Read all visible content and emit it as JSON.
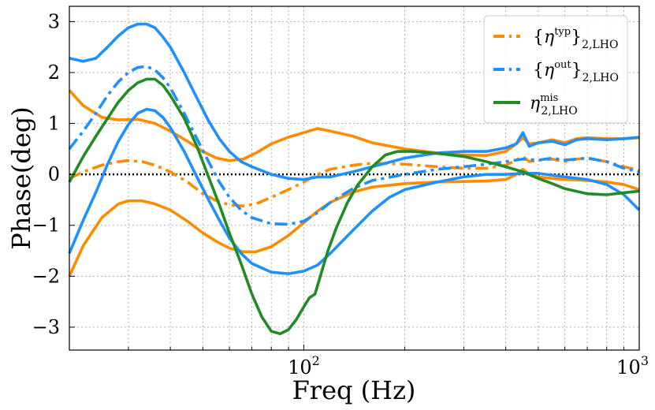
{
  "chart_data": {
    "type": "line",
    "title": "",
    "xlabel": "Freq (Hz)",
    "ylabel": "Phase(deg)",
    "xscale": "log",
    "xlim": [
      20,
      1000
    ],
    "ylim": [
      -3.45,
      3.3
    ],
    "grid": true,
    "legend_position": "top-right",
    "x_tick_labels": [
      {
        "value": 100,
        "base": "10",
        "exp": "2"
      },
      {
        "value": 1000,
        "base": "10",
        "exp": "3"
      }
    ],
    "y_ticks": [
      3,
      2,
      1,
      0,
      -1,
      -2,
      -3
    ],
    "y_tick_labels": [
      "3",
      "2",
      "1",
      "0",
      "−1",
      "−2",
      "−3"
    ],
    "legend": [
      {
        "symbol": "η",
        "sup": "typ",
        "sub": "2,LHO",
        "braces": true,
        "color": "#ff8c00",
        "style": "dashdot"
      },
      {
        "symbol": "η",
        "sup": "out",
        "sub": "2,LHO",
        "braces": true,
        "color": "#1e90ff",
        "style": "dashdot"
      },
      {
        "symbol": "η",
        "sup": "mis",
        "sub": "2,LHO",
        "braces": false,
        "color": "#228b22",
        "style": "solid"
      }
    ],
    "reference_line": {
      "y": 0,
      "color": "#000000",
      "style": "dotted"
    },
    "series": [
      {
        "id": "typ-upper",
        "color": "#ff8c00",
        "style": "solid",
        "points": [
          [
            20,
            1.65
          ],
          [
            22,
            1.35
          ],
          [
            25,
            1.12
          ],
          [
            28,
            1.07
          ],
          [
            32,
            1.08
          ],
          [
            36,
            1.0
          ],
          [
            40,
            0.85
          ],
          [
            45,
            0.65
          ],
          [
            50,
            0.45
          ],
          [
            55,
            0.32
          ],
          [
            60,
            0.27
          ],
          [
            66,
            0.3
          ],
          [
            72,
            0.42
          ],
          [
            80,
            0.6
          ],
          [
            90,
            0.73
          ],
          [
            100,
            0.82
          ],
          [
            110,
            0.9
          ],
          [
            120,
            0.85
          ],
          [
            140,
            0.75
          ],
          [
            160,
            0.62
          ],
          [
            200,
            0.5
          ],
          [
            250,
            0.42
          ],
          [
            300,
            0.38
          ],
          [
            350,
            0.37
          ],
          [
            400,
            0.45
          ],
          [
            430,
            0.6
          ],
          [
            450,
            0.72
          ],
          [
            470,
            0.6
          ],
          [
            500,
            0.62
          ],
          [
            550,
            0.68
          ],
          [
            600,
            0.62
          ],
          [
            650,
            0.7
          ],
          [
            700,
            0.72
          ],
          [
            800,
            0.7
          ],
          [
            900,
            0.7
          ],
          [
            1000,
            0.72
          ]
        ]
      },
      {
        "id": "typ-center",
        "color": "#ff8c00",
        "style": "dashdot",
        "points": [
          [
            20,
            -0.08
          ],
          [
            22,
            0.05
          ],
          [
            25,
            0.18
          ],
          [
            28,
            0.25
          ],
          [
            30,
            0.27
          ],
          [
            33,
            0.25
          ],
          [
            36,
            0.18
          ],
          [
            40,
            0.05
          ],
          [
            45,
            -0.15
          ],
          [
            50,
            -0.38
          ],
          [
            55,
            -0.52
          ],
          [
            60,
            -0.6
          ],
          [
            66,
            -0.62
          ],
          [
            72,
            -0.58
          ],
          [
            80,
            -0.45
          ],
          [
            90,
            -0.3
          ],
          [
            100,
            -0.15
          ],
          [
            110,
            0.0
          ],
          [
            120,
            0.1
          ],
          [
            140,
            0.18
          ],
          [
            160,
            0.22
          ],
          [
            200,
            0.2
          ],
          [
            250,
            0.15
          ],
          [
            300,
            0.12
          ],
          [
            350,
            0.12
          ],
          [
            400,
            0.18
          ],
          [
            430,
            0.28
          ],
          [
            450,
            0.35
          ],
          [
            470,
            0.25
          ],
          [
            500,
            0.28
          ],
          [
            550,
            0.3
          ],
          [
            600,
            0.25
          ],
          [
            650,
            0.3
          ],
          [
            700,
            0.32
          ],
          [
            800,
            0.25
          ],
          [
            900,
            0.15
          ],
          [
            1000,
            0.08
          ]
        ]
      },
      {
        "id": "typ-lower",
        "color": "#ff8c00",
        "style": "solid",
        "points": [
          [
            20,
            -2.0
          ],
          [
            22,
            -1.4
          ],
          [
            25,
            -0.85
          ],
          [
            28,
            -0.58
          ],
          [
            30,
            -0.52
          ],
          [
            33,
            -0.52
          ],
          [
            36,
            -0.58
          ],
          [
            40,
            -0.7
          ],
          [
            45,
            -0.92
          ],
          [
            50,
            -1.15
          ],
          [
            55,
            -1.32
          ],
          [
            60,
            -1.45
          ],
          [
            66,
            -1.52
          ],
          [
            72,
            -1.52
          ],
          [
            80,
            -1.42
          ],
          [
            90,
            -1.2
          ],
          [
            100,
            -0.95
          ],
          [
            110,
            -0.72
          ],
          [
            120,
            -0.55
          ],
          [
            140,
            -0.35
          ],
          [
            160,
            -0.25
          ],
          [
            200,
            -0.18
          ],
          [
            250,
            -0.15
          ],
          [
            300,
            -0.14
          ],
          [
            350,
            -0.13
          ],
          [
            400,
            -0.1
          ],
          [
            430,
            0.0
          ],
          [
            450,
            0.1
          ],
          [
            470,
            0.0
          ],
          [
            500,
            -0.05
          ],
          [
            550,
            -0.08
          ],
          [
            600,
            -0.1
          ],
          [
            700,
            -0.12
          ],
          [
            800,
            -0.15
          ],
          [
            900,
            -0.2
          ],
          [
            1000,
            -0.3
          ]
        ]
      },
      {
        "id": "out-upper",
        "color": "#1e90ff",
        "style": "solid",
        "points": [
          [
            20,
            2.28
          ],
          [
            22,
            2.22
          ],
          [
            24,
            2.28
          ],
          [
            26,
            2.5
          ],
          [
            28,
            2.72
          ],
          [
            30,
            2.88
          ],
          [
            32,
            2.95
          ],
          [
            34,
            2.95
          ],
          [
            36,
            2.88
          ],
          [
            38,
            2.7
          ],
          [
            40,
            2.5
          ],
          [
            44,
            2.0
          ],
          [
            48,
            1.5
          ],
          [
            52,
            1.05
          ],
          [
            56,
            0.7
          ],
          [
            60,
            0.45
          ],
          [
            65,
            0.25
          ],
          [
            70,
            0.15
          ],
          [
            80,
            0.0
          ],
          [
            90,
            -0.08
          ],
          [
            100,
            -0.1
          ],
          [
            110,
            -0.05
          ],
          [
            120,
            -0.05
          ],
          [
            140,
            0.05
          ],
          [
            160,
            0.15
          ],
          [
            200,
            0.32
          ],
          [
            250,
            0.42
          ],
          [
            300,
            0.45
          ],
          [
            350,
            0.45
          ],
          [
            400,
            0.52
          ],
          [
            430,
            0.6
          ],
          [
            450,
            0.82
          ],
          [
            470,
            0.55
          ],
          [
            500,
            0.62
          ],
          [
            550,
            0.65
          ],
          [
            600,
            0.58
          ],
          [
            650,
            0.68
          ],
          [
            700,
            0.7
          ],
          [
            800,
            0.68
          ],
          [
            900,
            0.7
          ],
          [
            1000,
            0.73
          ]
        ]
      },
      {
        "id": "out-center",
        "color": "#1e90ff",
        "style": "dashdot",
        "points": [
          [
            20,
            0.5
          ],
          [
            22,
            0.85
          ],
          [
            24,
            1.2
          ],
          [
            26,
            1.55
          ],
          [
            28,
            1.82
          ],
          [
            30,
            2.0
          ],
          [
            32,
            2.1
          ],
          [
            34,
            2.12
          ],
          [
            36,
            2.05
          ],
          [
            38,
            1.9
          ],
          [
            40,
            1.7
          ],
          [
            44,
            1.2
          ],
          [
            48,
            0.7
          ],
          [
            52,
            0.25
          ],
          [
            56,
            -0.15
          ],
          [
            60,
            -0.45
          ],
          [
            65,
            -0.7
          ],
          [
            70,
            -0.85
          ],
          [
            80,
            -0.97
          ],
          [
            90,
            -0.98
          ],
          [
            100,
            -0.92
          ],
          [
            110,
            -0.75
          ],
          [
            120,
            -0.55
          ],
          [
            140,
            -0.28
          ],
          [
            160,
            -0.12
          ],
          [
            200,
            0.0
          ],
          [
            250,
            0.1
          ],
          [
            300,
            0.15
          ],
          [
            350,
            0.2
          ],
          [
            400,
            0.25
          ],
          [
            450,
            0.3
          ],
          [
            500,
            0.28
          ],
          [
            550,
            0.32
          ],
          [
            600,
            0.28
          ],
          [
            650,
            0.3
          ],
          [
            700,
            0.32
          ],
          [
            800,
            0.25
          ],
          [
            900,
            0.12
          ],
          [
            1000,
            0.05
          ]
        ]
      },
      {
        "id": "out-lower",
        "color": "#1e90ff",
        "style": "solid",
        "points": [
          [
            20,
            -1.55
          ],
          [
            22,
            -0.9
          ],
          [
            24,
            -0.35
          ],
          [
            26,
            0.2
          ],
          [
            28,
            0.65
          ],
          [
            30,
            0.98
          ],
          [
            32,
            1.2
          ],
          [
            34,
            1.28
          ],
          [
            36,
            1.25
          ],
          [
            38,
            1.12
          ],
          [
            40,
            0.92
          ],
          [
            44,
            0.45
          ],
          [
            48,
            -0.05
          ],
          [
            52,
            -0.5
          ],
          [
            56,
            -0.9
          ],
          [
            60,
            -1.25
          ],
          [
            65,
            -1.55
          ],
          [
            70,
            -1.75
          ],
          [
            80,
            -1.92
          ],
          [
            90,
            -1.95
          ],
          [
            100,
            -1.9
          ],
          [
            110,
            -1.78
          ],
          [
            120,
            -1.55
          ],
          [
            140,
            -1.1
          ],
          [
            160,
            -0.72
          ],
          [
            180,
            -0.45
          ],
          [
            200,
            -0.3
          ],
          [
            250,
            -0.15
          ],
          [
            300,
            -0.05
          ],
          [
            350,
            0.0
          ],
          [
            400,
            0.0
          ],
          [
            450,
            0.02
          ],
          [
            500,
            0.02
          ],
          [
            600,
            -0.05
          ],
          [
            700,
            -0.1
          ],
          [
            800,
            -0.2
          ],
          [
            900,
            -0.4
          ],
          [
            1000,
            -0.7
          ]
        ]
      },
      {
        "id": "mis",
        "color": "#228b22",
        "style": "solid",
        "points": [
          [
            20,
            -0.15
          ],
          [
            22,
            0.35
          ],
          [
            24,
            0.75
          ],
          [
            26,
            1.1
          ],
          [
            28,
            1.42
          ],
          [
            30,
            1.65
          ],
          [
            32,
            1.8
          ],
          [
            34,
            1.87
          ],
          [
            36,
            1.87
          ],
          [
            38,
            1.75
          ],
          [
            40,
            1.55
          ],
          [
            44,
            1.1
          ],
          [
            48,
            0.55
          ],
          [
            52,
            -0.05
          ],
          [
            56,
            -0.6
          ],
          [
            60,
            -1.15
          ],
          [
            65,
            -1.75
          ],
          [
            70,
            -2.35
          ],
          [
            75,
            -2.8
          ],
          [
            80,
            -3.08
          ],
          [
            85,
            -3.13
          ],
          [
            90,
            -3.05
          ],
          [
            95,
            -2.85
          ],
          [
            100,
            -2.6
          ],
          [
            104,
            -2.42
          ],
          [
            108,
            -2.35
          ],
          [
            112,
            -2.0
          ],
          [
            118,
            -1.5
          ],
          [
            125,
            -1.05
          ],
          [
            135,
            -0.55
          ],
          [
            145,
            -0.2
          ],
          [
            160,
            0.15
          ],
          [
            175,
            0.38
          ],
          [
            190,
            0.45
          ],
          [
            210,
            0.45
          ],
          [
            230,
            0.43
          ],
          [
            260,
            0.4
          ],
          [
            300,
            0.35
          ],
          [
            350,
            0.25
          ],
          [
            400,
            0.15
          ],
          [
            450,
            0.05
          ],
          [
            500,
            -0.08
          ],
          [
            550,
            -0.18
          ],
          [
            600,
            -0.28
          ],
          [
            700,
            -0.38
          ],
          [
            800,
            -0.4
          ],
          [
            900,
            -0.36
          ],
          [
            1000,
            -0.33
          ]
        ]
      }
    ]
  }
}
